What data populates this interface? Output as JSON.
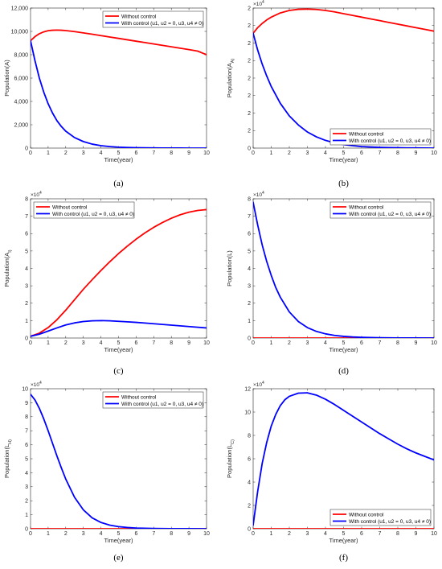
{
  "colors": {
    "without_control": "#ff0000",
    "with_control": "#0000ff"
  },
  "chart_data": [
    {
      "id": "a",
      "type": "line",
      "caption": "(a)",
      "xlabel": "Time(year)",
      "ylabel": "Population(A)",
      "xlim": [
        0,
        10
      ],
      "ylim": [
        0,
        12000
      ],
      "xticks": [
        "0",
        "1",
        "2",
        "3",
        "4",
        "5",
        "6",
        "7",
        "8",
        "9",
        "10"
      ],
      "yticks": [
        "0",
        "2,000",
        "4,000",
        "6,000",
        "8,000",
        "10,000",
        "12,000"
      ],
      "yexp": "",
      "legend": "top-right",
      "series": [
        {
          "name": "Without control",
          "color": "#ff0000",
          "x": [
            0,
            0.25,
            0.5,
            0.75,
            1,
            1.25,
            1.5,
            1.75,
            2,
            2.5,
            3,
            3.5,
            4,
            4.5,
            5,
            5.5,
            6,
            6.5,
            7,
            7.5,
            8,
            8.5,
            9,
            9.5,
            10
          ],
          "y": [
            9200,
            9550,
            9800,
            9960,
            10060,
            10100,
            10110,
            10100,
            10070,
            9980,
            9870,
            9760,
            9640,
            9520,
            9400,
            9280,
            9160,
            9040,
            8920,
            8800,
            8680,
            8560,
            8440,
            8310,
            8000
          ]
        },
        {
          "name": "With control (u1, u2 = 0, u3, u4 ≠ 0)",
          "color": "#0000ff",
          "x": [
            0,
            0.25,
            0.5,
            0.75,
            1,
            1.25,
            1.5,
            1.75,
            2,
            2.5,
            3,
            3.5,
            4,
            4.5,
            5,
            5.5,
            6,
            6.5,
            7,
            7.5,
            8,
            8.5,
            9,
            9.5,
            10
          ],
          "y": [
            9200,
            7500,
            6000,
            4800,
            3800,
            3000,
            2350,
            1850,
            1450,
            900,
            560,
            340,
            210,
            130,
            80,
            50,
            30,
            20,
            12,
            8,
            5,
            3,
            2,
            1,
            0
          ]
        }
      ]
    },
    {
      "id": "b",
      "type": "line",
      "caption": "(b)",
      "xlabel": "Time(year)",
      "ylabel": "Population(A_A)",
      "xlim": [
        0,
        10
      ],
      "ylim": [
        0,
        2
      ],
      "xticks": [
        "0",
        "1",
        "2",
        "3",
        "4",
        "5",
        "6",
        "7",
        "8",
        "9",
        "10"
      ],
      "yticks": [
        "0",
        "2",
        "2",
        "2",
        "2",
        "2",
        "2",
        "2",
        "2"
      ],
      "yexp": "×10^4",
      "legend": "bottom-right",
      "series": [
        {
          "name": "Without control",
          "color": "#ff0000",
          "x": [
            0,
            0.25,
            0.5,
            0.75,
            1,
            1.5,
            2,
            2.5,
            3,
            3.5,
            4,
            4.5,
            5,
            5.5,
            6,
            6.5,
            7,
            7.5,
            8,
            8.5,
            9,
            9.5,
            10
          ],
          "y": [
            1.64,
            1.72,
            1.78,
            1.83,
            1.87,
            1.93,
            1.965,
            1.982,
            1.985,
            1.98,
            1.965,
            1.945,
            1.92,
            1.895,
            1.87,
            1.845,
            1.82,
            1.795,
            1.77,
            1.745,
            1.72,
            1.695,
            1.67
          ]
        },
        {
          "name": "With control (u1, u2 = 0, u3, u4 ≠ 0)",
          "color": "#0000ff",
          "x": [
            0,
            0.25,
            0.5,
            0.75,
            1,
            1.5,
            2,
            2.5,
            3,
            3.5,
            4,
            4.5,
            5,
            5.5,
            6,
            6.5,
            7,
            7.5,
            8,
            8.5,
            9,
            9.5,
            10
          ],
          "y": [
            1.64,
            1.4,
            1.2,
            1.03,
            0.88,
            0.64,
            0.46,
            0.33,
            0.23,
            0.16,
            0.11,
            0.075,
            0.05,
            0.034,
            0.022,
            0.015,
            0.01,
            0.007,
            0.005,
            0.003,
            0.002,
            0.001,
            0
          ]
        }
      ]
    },
    {
      "id": "c",
      "type": "line",
      "caption": "(c)",
      "xlabel": "Time(year)",
      "ylabel": "Population(A_I)",
      "xlim": [
        0,
        10
      ],
      "ylim": [
        0,
        8
      ],
      "xticks": [
        "0",
        "1",
        "2",
        "3",
        "4",
        "5",
        "6",
        "7",
        "8",
        "9",
        "10"
      ],
      "yticks": [
        "0",
        "1",
        "2",
        "3",
        "4",
        "5",
        "6",
        "7",
        "8"
      ],
      "yexp": "×10^4",
      "legend": "top-left",
      "series": [
        {
          "name": "Without control",
          "color": "#ff0000",
          "x": [
            0,
            0.5,
            1,
            1.5,
            2,
            2.5,
            3,
            3.5,
            4,
            4.5,
            5,
            5.5,
            6,
            6.5,
            7,
            7.5,
            8,
            8.5,
            9,
            9.5,
            10
          ],
          "y": [
            0.1,
            0.28,
            0.6,
            1.05,
            1.6,
            2.2,
            2.8,
            3.35,
            3.88,
            4.38,
            4.85,
            5.28,
            5.68,
            6.04,
            6.36,
            6.64,
            6.88,
            7.08,
            7.23,
            7.33,
            7.38
          ]
        },
        {
          "name": "With control (u1, u2 = 0, u3, u4 ≠ 0)",
          "color": "#0000ff",
          "x": [
            0,
            0.5,
            1,
            1.5,
            2,
            2.5,
            3,
            3.5,
            4,
            4.5,
            5,
            5.5,
            6,
            6.5,
            7,
            7.5,
            8,
            8.5,
            9,
            9.5,
            10
          ],
          "y": [
            0.1,
            0.22,
            0.4,
            0.58,
            0.75,
            0.87,
            0.95,
            0.99,
            1.0,
            0.99,
            0.96,
            0.93,
            0.9,
            0.86,
            0.82,
            0.78,
            0.74,
            0.7,
            0.66,
            0.62,
            0.58
          ]
        }
      ]
    },
    {
      "id": "d",
      "type": "line",
      "caption": "(d)",
      "xlabel": "Time(year)",
      "ylabel": "Population(L)",
      "xlim": [
        0,
        10
      ],
      "ylim": [
        0,
        8
      ],
      "xticks": [
        "0",
        "1",
        "2",
        "3",
        "4",
        "5",
        "6",
        "7",
        "8",
        "9",
        "10"
      ],
      "yticks": [
        "0",
        "1",
        "2",
        "3",
        "4",
        "5",
        "6",
        "7",
        "8"
      ],
      "yexp": "×10^4",
      "legend": "top-right",
      "series": [
        {
          "name": "Without control",
          "color": "#ff0000",
          "x": [
            0,
            10
          ],
          "y": [
            0,
            0
          ]
        },
        {
          "name": "With control (u1, u2 = 0, u3, u4 ≠ 0)",
          "color": "#0000ff",
          "x": [
            0,
            0.25,
            0.5,
            0.75,
            1,
            1.25,
            1.5,
            2,
            2.5,
            3,
            3.5,
            4,
            4.5,
            5,
            5.5,
            6,
            7,
            8,
            9,
            10
          ],
          "y": [
            7.8,
            6.5,
            5.35,
            4.4,
            3.6,
            2.9,
            2.35,
            1.5,
            0.95,
            0.6,
            0.38,
            0.24,
            0.15,
            0.095,
            0.06,
            0.038,
            0.015,
            0.006,
            0.002,
            0
          ]
        }
      ]
    },
    {
      "id": "e",
      "type": "line",
      "caption": "(e)",
      "xlabel": "Time(year)",
      "ylabel": "Population(L_H)",
      "xlim": [
        0,
        10
      ],
      "ylim": [
        0,
        10
      ],
      "xticks": [
        "0",
        "1",
        "2",
        "3",
        "4",
        "5",
        "6",
        "7",
        "8",
        "9",
        "10"
      ],
      "yticks": [
        "0",
        "1",
        "2",
        "3",
        "4",
        "5",
        "6",
        "7",
        "8",
        "9",
        "10"
      ],
      "yexp": "×10^4",
      "legend": "top-right",
      "series": [
        {
          "name": "Without control",
          "color": "#ff0000",
          "x": [
            0,
            10
          ],
          "y": [
            0,
            0
          ]
        },
        {
          "name": "With control (u1, u2 = 0, u3, u4 ≠ 0)",
          "color": "#0000ff",
          "x": [
            0,
            0.25,
            0.5,
            0.75,
            1,
            1.25,
            1.5,
            1.75,
            2,
            2.5,
            3,
            3.5,
            4,
            4.5,
            5,
            5.5,
            6,
            7,
            8,
            9,
            10
          ],
          "y": [
            9.6,
            9.2,
            8.6,
            7.85,
            7.0,
            6.1,
            5.2,
            4.35,
            3.55,
            2.25,
            1.35,
            0.78,
            0.45,
            0.26,
            0.15,
            0.09,
            0.05,
            0.02,
            0.008,
            0.003,
            0
          ]
        }
      ]
    },
    {
      "id": "f",
      "type": "line",
      "caption": "(f)",
      "xlabel": "Time(year)",
      "ylabel": "Population(L_C)",
      "xlim": [
        0,
        10
      ],
      "ylim": [
        0,
        12
      ],
      "xticks": [
        "0",
        "1",
        "2",
        "3",
        "4",
        "5",
        "6",
        "7",
        "8",
        "9",
        "10"
      ],
      "yticks": [
        "0",
        "2",
        "4",
        "6",
        "8",
        "10",
        "12"
      ],
      "yexp": "×10^4",
      "legend": "bottom-right",
      "series": [
        {
          "name": "Without control",
          "color": "#ff0000",
          "x": [
            0,
            10
          ],
          "y": [
            0,
            0
          ]
        },
        {
          "name": "With control (u1, u2 = 0, u3, u4 ≠ 0)",
          "color": "#0000ff",
          "x": [
            0,
            0.25,
            0.5,
            0.75,
            1,
            1.25,
            1.5,
            1.75,
            2,
            2.5,
            3,
            3.5,
            4,
            4.5,
            5,
            5.5,
            6,
            6.5,
            7,
            7.5,
            8,
            8.5,
            9,
            9.5,
            10
          ],
          "y": [
            0.3,
            3.2,
            5.6,
            7.4,
            8.8,
            9.8,
            10.55,
            11.05,
            11.35,
            11.62,
            11.65,
            11.45,
            11.1,
            10.65,
            10.15,
            9.65,
            9.15,
            8.65,
            8.15,
            7.7,
            7.25,
            6.85,
            6.5,
            6.2,
            5.9
          ]
        }
      ]
    }
  ]
}
